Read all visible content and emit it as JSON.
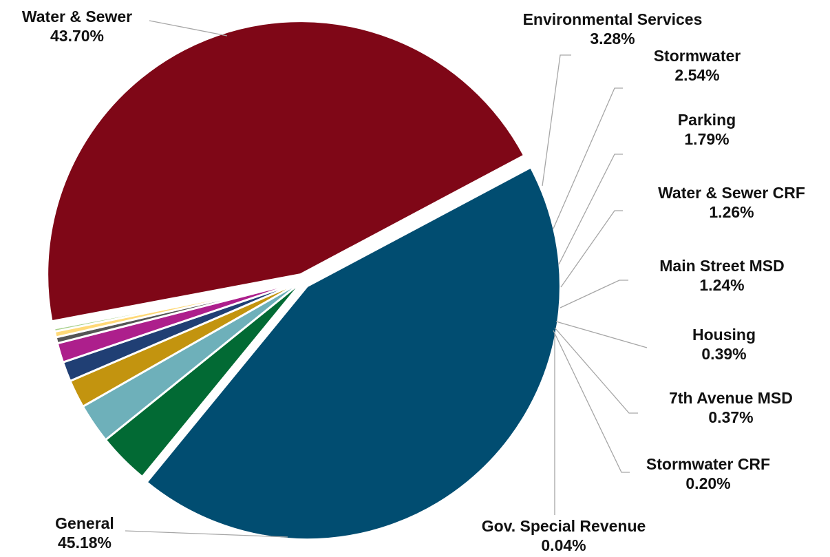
{
  "chart_data": {
    "type": "pie",
    "title": "",
    "categories": [
      "Water & Sewer",
      "Environmental Services",
      "Stormwater",
      "Parking",
      "Water & Sewer CRF",
      "Main Street MSD",
      "Housing",
      "7th Avenue MSD",
      "Stormwater CRF",
      "Gov. Special Revenue",
      "General"
    ],
    "values": [
      43.7,
      3.28,
      2.54,
      1.79,
      1.26,
      1.24,
      0.39,
      0.37,
      0.2,
      0.04,
      45.18
    ],
    "value_labels": [
      "43.70%",
      "3.28%",
      "2.54%",
      "1.79%",
      "1.26%",
      "1.24%",
      "0.39%",
      "0.37%",
      "0.20%",
      "0.04%",
      "45.18%"
    ],
    "colors": [
      "#014d71",
      "#026a34",
      "#6eb0ba",
      "#c3940f",
      "#203f74",
      "#ad1f8c",
      "#555555",
      "#ffd977",
      "#a9d18e",
      "#9dc3e6",
      "#7f0717"
    ],
    "legend": "none",
    "data_labels": "outside with leader lines"
  }
}
